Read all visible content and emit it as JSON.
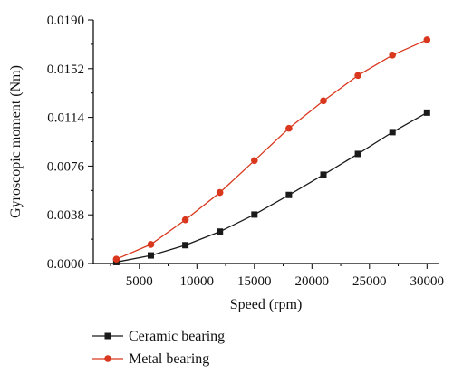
{
  "chart_data": {
    "type": "line",
    "title": "",
    "xlabel": "Speed (rpm)",
    "ylabel": "Gyroscopic moment (Nm)",
    "xlim": [
      1000,
      31000
    ],
    "ylim": [
      0.0,
      0.019
    ],
    "x_ticks": [
      5000,
      10000,
      15000,
      20000,
      25000,
      30000
    ],
    "x_tick_labels": [
      "5000",
      "10000",
      "15000",
      "20000",
      "25000",
      "30000"
    ],
    "y_ticks": [
      0.0,
      0.0038,
      0.0076,
      0.0114,
      0.0152,
      0.019
    ],
    "y_tick_labels": [
      "0.0000",
      "0.0038",
      "0.0076",
      "0.0114",
      "0.0152",
      "0.0190"
    ],
    "grid": false,
    "legend_position": "bottom-left, below chart",
    "series": [
      {
        "name": "Ceramic bearing",
        "color": "#1a1a1a",
        "marker": "square",
        "x": [
          3000,
          6000,
          9000,
          12000,
          15000,
          18000,
          21000,
          24000,
          27000,
          30000
        ],
        "y": [
          0.00011,
          0.00063,
          0.00143,
          0.00249,
          0.00382,
          0.00535,
          0.00693,
          0.00855,
          0.01025,
          0.01177
        ]
      },
      {
        "name": "Metal bearing",
        "color": "#d9381e",
        "marker": "circle",
        "x": [
          3000,
          6000,
          9000,
          12000,
          15000,
          18000,
          21000,
          24000,
          27000,
          30000
        ],
        "y": [
          0.00034,
          0.00149,
          0.00341,
          0.00554,
          0.00803,
          0.01055,
          0.01269,
          0.01467,
          0.01626,
          0.01745
        ]
      }
    ]
  }
}
